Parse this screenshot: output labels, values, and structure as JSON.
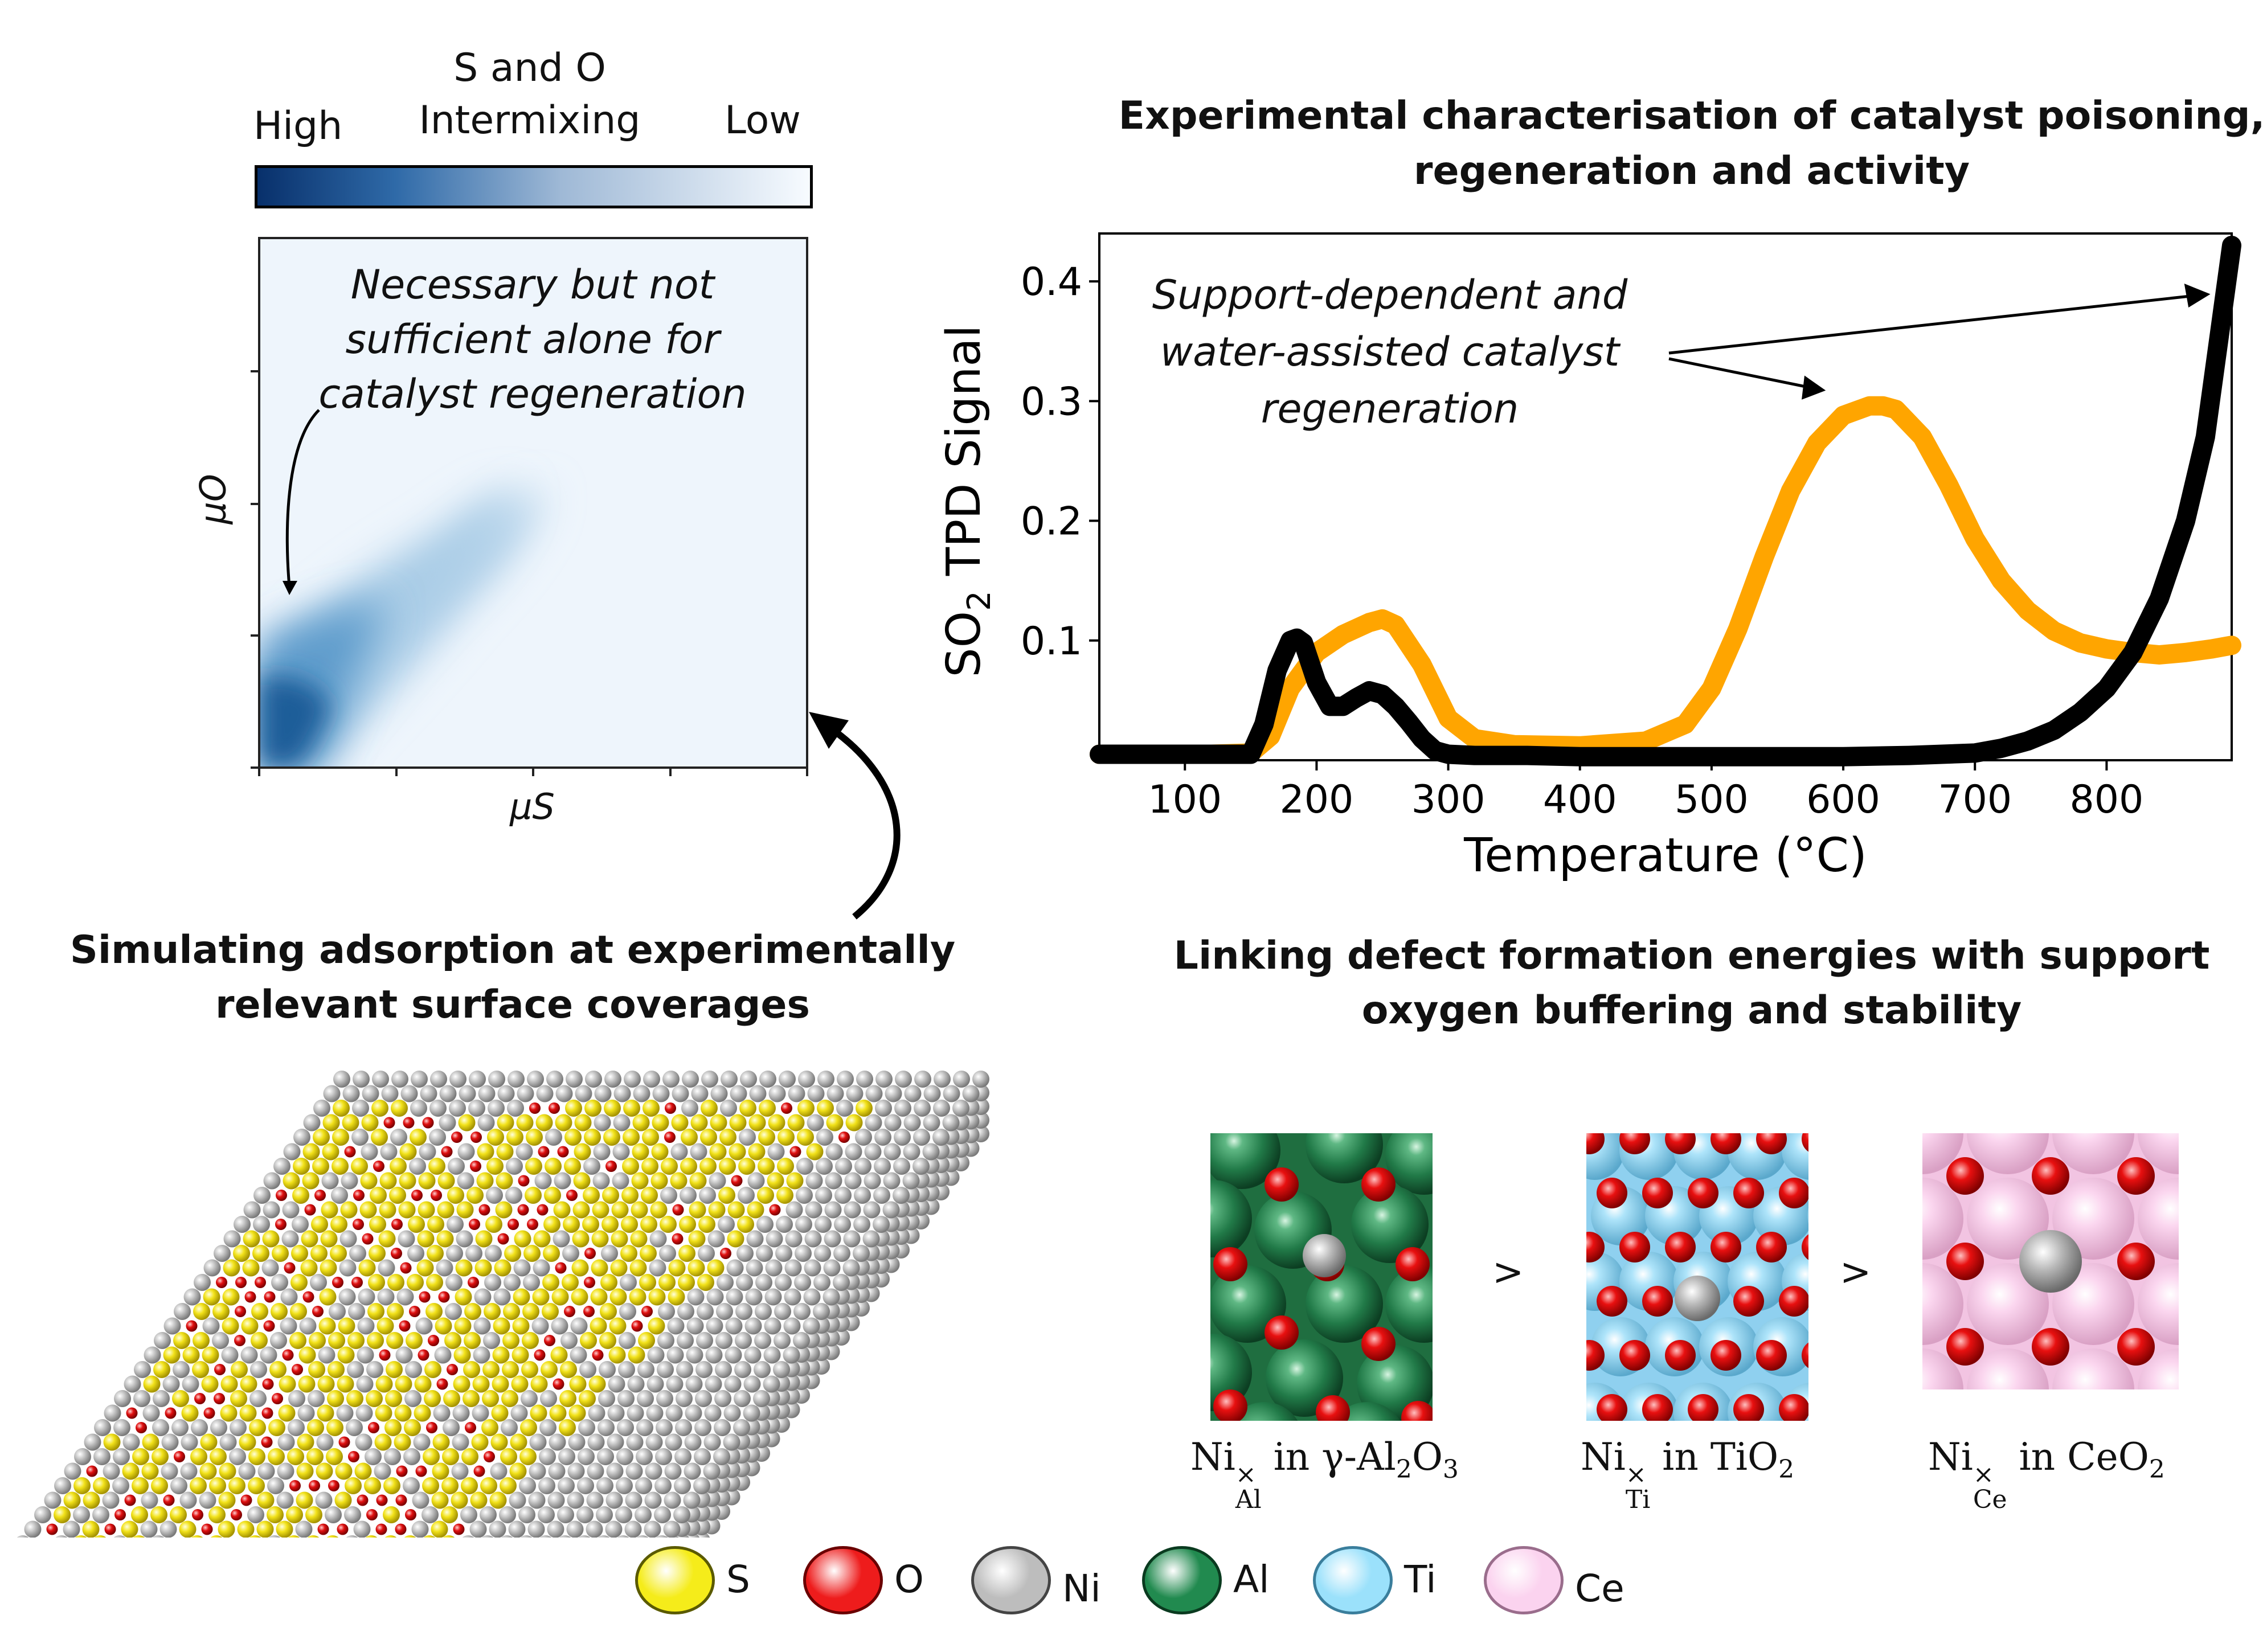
{
  "colorbar": {
    "title_line1": "S and O",
    "title_line2": "Intermixing",
    "high": "High",
    "low": "Low",
    "colors": [
      "#08306b",
      "#f7fbff"
    ]
  },
  "heatmap": {
    "annotation_line1": "Necessary but not",
    "annotation_line2": "sufficient alone for",
    "annotation_line3": "catalyst regeneration",
    "ylabel": "μO",
    "xlabel": "μS"
  },
  "left_caption": {
    "line1": "Simulating adsorption at experimentally",
    "line2": "relevant surface coverages"
  },
  "right_caption": {
    "line1": "Experimental characterisation of catalyst poisoning,",
    "line2": "regeneration and activity"
  },
  "defect_caption": {
    "line1": "Linking defect formation energies with support",
    "line2": "oxygen buffering and stability"
  },
  "chart_data": {
    "type": "line",
    "title": "",
    "xlabel": "Temperature (°C)",
    "ylabel": "SO2 TPD Signal",
    "xlim": [
      35,
      895
    ],
    "ylim": [
      0,
      0.44
    ],
    "xticks": [
      100,
      200,
      300,
      400,
      500,
      600,
      700,
      800
    ],
    "yticks": [
      0.1,
      0.2,
      0.3,
      0.4
    ],
    "annotation": [
      "Support-dependent and",
      "water-assisted catalyst",
      "regeneration"
    ],
    "series": [
      {
        "name": "orange",
        "color": "#ffa500",
        "x": [
          35,
          80,
          120,
          150,
          165,
          180,
          200,
          220,
          240,
          250,
          260,
          280,
          300,
          320,
          350,
          400,
          450,
          480,
          500,
          520,
          540,
          560,
          580,
          600,
          620,
          630,
          640,
          660,
          680,
          700,
          720,
          740,
          760,
          780,
          800,
          820,
          840,
          860,
          880,
          895
        ],
        "y": [
          0.005,
          0.005,
          0.005,
          0.006,
          0.02,
          0.06,
          0.09,
          0.105,
          0.115,
          0.118,
          0.113,
          0.08,
          0.035,
          0.018,
          0.013,
          0.012,
          0.016,
          0.03,
          0.06,
          0.11,
          0.17,
          0.225,
          0.265,
          0.288,
          0.296,
          0.296,
          0.293,
          0.27,
          0.23,
          0.185,
          0.15,
          0.125,
          0.108,
          0.098,
          0.093,
          0.09,
          0.088,
          0.09,
          0.093,
          0.096
        ]
      },
      {
        "name": "black",
        "color": "#000000",
        "x": [
          35,
          80,
          120,
          150,
          160,
          170,
          180,
          185,
          190,
          200,
          210,
          220,
          230,
          240,
          250,
          260,
          270,
          280,
          290,
          300,
          320,
          360,
          400,
          450,
          500,
          550,
          600,
          650,
          700,
          720,
          740,
          760,
          780,
          800,
          820,
          840,
          860,
          875,
          895
        ],
        "y": [
          0.005,
          0.005,
          0.005,
          0.005,
          0.03,
          0.075,
          0.1,
          0.102,
          0.098,
          0.065,
          0.045,
          0.045,
          0.052,
          0.058,
          0.055,
          0.045,
          0.032,
          0.018,
          0.008,
          0.005,
          0.004,
          0.004,
          0.003,
          0.003,
          0.003,
          0.003,
          0.003,
          0.004,
          0.006,
          0.01,
          0.016,
          0.025,
          0.04,
          0.06,
          0.09,
          0.135,
          0.2,
          0.27,
          0.43
        ]
      }
    ]
  },
  "defects": [
    {
      "species": "Ni",
      "site": "Al",
      "sup": "×",
      "rest": " in γ-Al",
      "sub1": "2",
      "mid": "O",
      "sub2": "3",
      "end": ""
    },
    {
      "species": "Ni",
      "site": "Ti",
      "sup": "×",
      "rest": " in TiO",
      "sub1": "2",
      "mid": "",
      "sub2": "",
      "end": ""
    },
    {
      "species": "Ni",
      "site": "Ce",
      "sup": "×",
      "rest": " in CeO",
      "sub1": "2",
      "mid": "",
      "sub2": "",
      "end": ""
    }
  ],
  "comparators": [
    ">",
    ">"
  ],
  "legend": [
    {
      "label": "S",
      "color": "#f5ec1a"
    },
    {
      "label": "O",
      "color": "#ee1c1c"
    },
    {
      "label": "Ni",
      "color": "#bdbdbd"
    },
    {
      "label": "Al",
      "color": "#218a4f"
    },
    {
      "label": "Ti",
      "color": "#9be1fb"
    },
    {
      "label": "Ce",
      "color": "#fbd3ef"
    }
  ]
}
